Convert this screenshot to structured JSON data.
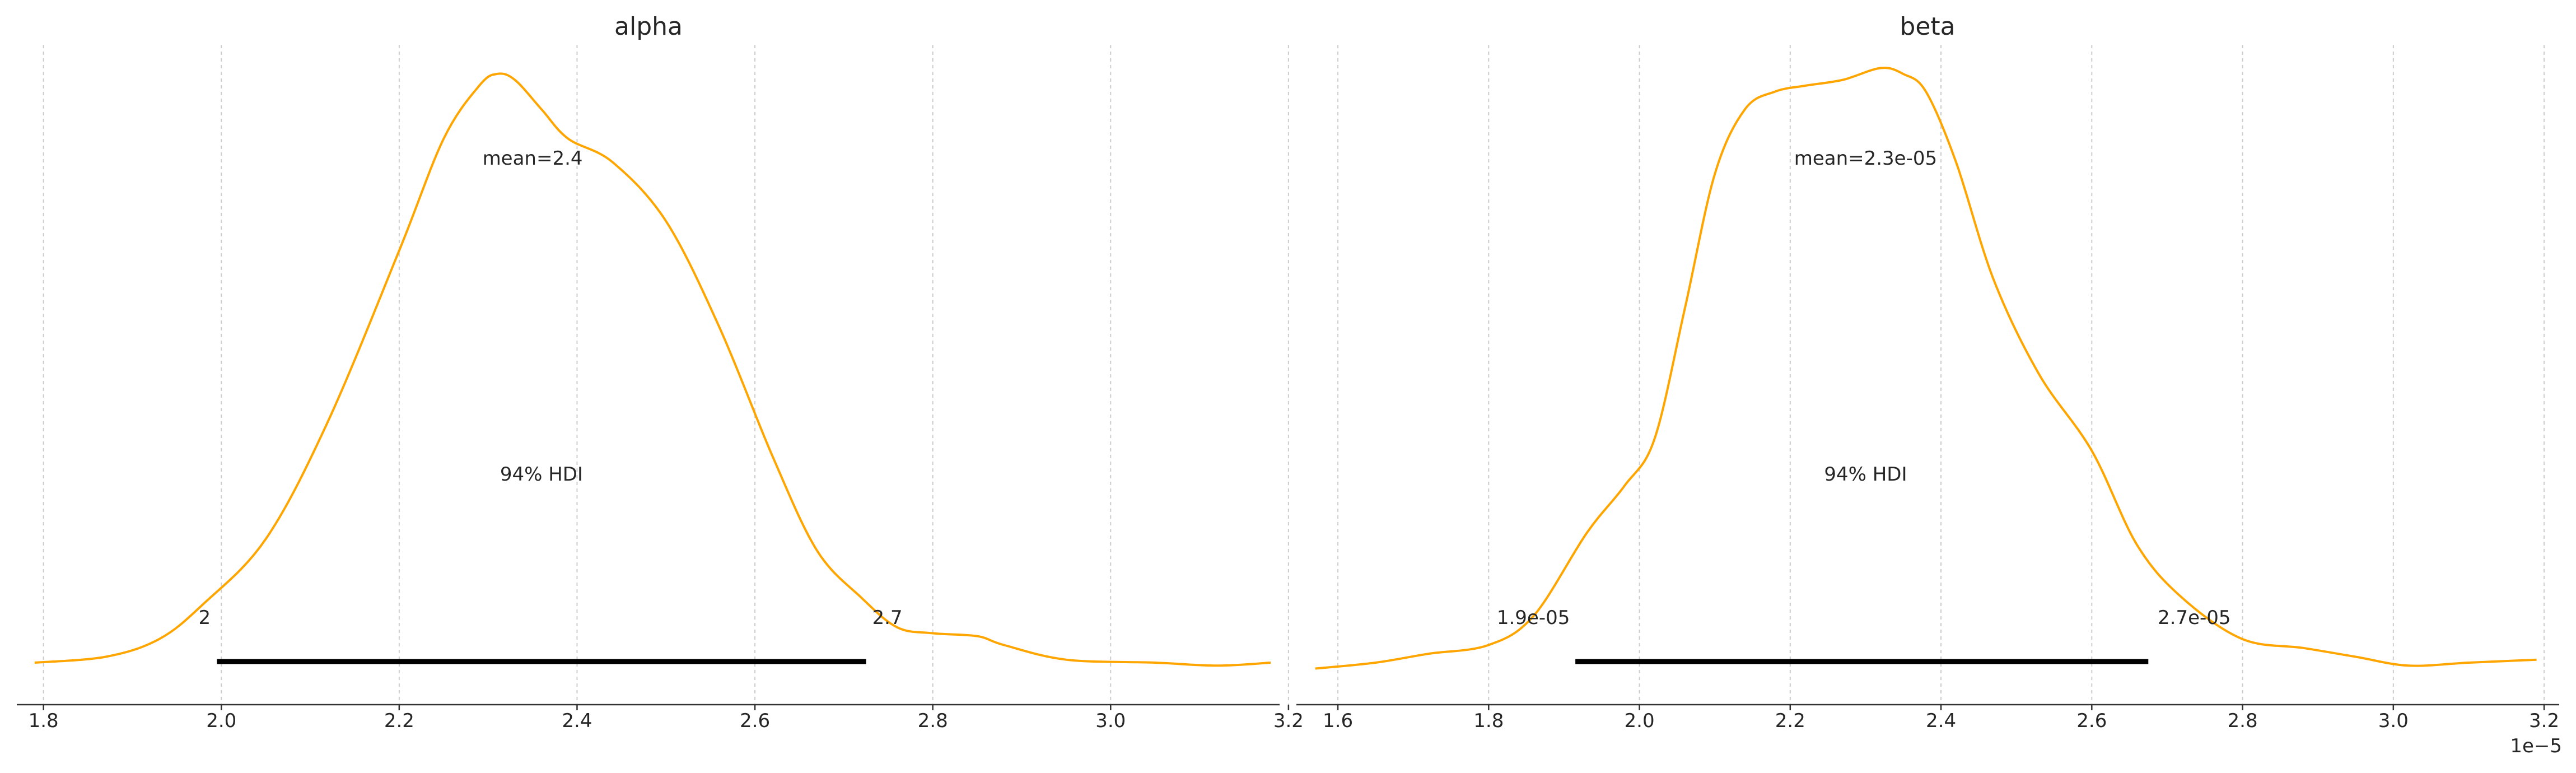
{
  "chart_data": [
    {
      "type": "line",
      "title": "alpha",
      "xlim": [
        1.77,
        3.19
      ],
      "xticks": [
        1.8,
        2.0,
        2.2,
        2.4,
        2.6,
        2.8,
        3.0,
        3.2
      ],
      "xtick_labels": [
        "1.8",
        "2.0",
        "2.2",
        "2.4",
        "2.6",
        "2.8",
        "3.0",
        "3.2"
      ],
      "grid": "x-dashed",
      "series": [
        {
          "color": "#ffa500",
          "x": [
            1.79,
            1.87,
            1.93,
            1.98,
            2.05,
            2.12,
            2.2,
            2.25,
            2.29,
            2.31,
            2.33,
            2.36,
            2.39,
            2.44,
            2.5,
            2.56,
            2.62,
            2.67,
            2.72,
            2.76,
            2.8,
            2.85,
            2.88,
            2.95,
            3.05,
            3.12,
            3.18
          ],
          "y": [
            0.0,
            0.01,
            0.04,
            0.1,
            0.21,
            0.41,
            0.7,
            0.89,
            0.98,
            1.0,
            0.99,
            0.94,
            0.89,
            0.85,
            0.75,
            0.57,
            0.35,
            0.19,
            0.11,
            0.06,
            0.05,
            0.045,
            0.03,
            0.005,
            0.0,
            -0.005,
            0.0
          ]
        }
      ],
      "mean_label": "mean=2.4",
      "hdi_label": "94% HDI",
      "hdi": [
        1.995,
        2.725
      ],
      "hdi_low_label": "2",
      "hdi_high_label": "2.7"
    },
    {
      "type": "line",
      "title": "beta",
      "xlim": [
        1.545,
        3.22
      ],
      "xticks": [
        1.6,
        1.8,
        2.0,
        2.2,
        2.4,
        2.6,
        2.8,
        3.0,
        3.2
      ],
      "xtick_labels": [
        "1.6",
        "1.8",
        "2.0",
        "2.2",
        "2.4",
        "2.6",
        "2.8",
        "3.0",
        "3.2"
      ],
      "scale_label": "1e−5",
      "grid": "x-dashed",
      "series": [
        {
          "color": "#ffa500",
          "x": [
            1.57,
            1.65,
            1.72,
            1.8,
            1.86,
            1.93,
            1.98,
            2.02,
            2.06,
            2.1,
            2.14,
            2.18,
            2.22,
            2.27,
            2.32,
            2.35,
            2.38,
            2.42,
            2.47,
            2.53,
            2.6,
            2.66,
            2.72,
            2.8,
            2.88,
            2.95,
            3.02,
            3.1,
            3.19
          ],
          "y": [
            -0.01,
            0.0,
            0.015,
            0.03,
            0.08,
            0.22,
            0.3,
            0.38,
            0.6,
            0.83,
            0.94,
            0.97,
            0.98,
            0.99,
            1.01,
            1.0,
            0.97,
            0.85,
            0.65,
            0.49,
            0.36,
            0.2,
            0.11,
            0.04,
            0.025,
            0.01,
            -0.005,
            0.0,
            0.005
          ]
        }
      ],
      "mean_label": "mean=2.3e-05",
      "hdi_label": "94% HDI",
      "hdi": [
        1.915,
        2.675
      ],
      "hdi_low_label": "1.9e-05",
      "hdi_high_label": "2.7e-05"
    }
  ]
}
